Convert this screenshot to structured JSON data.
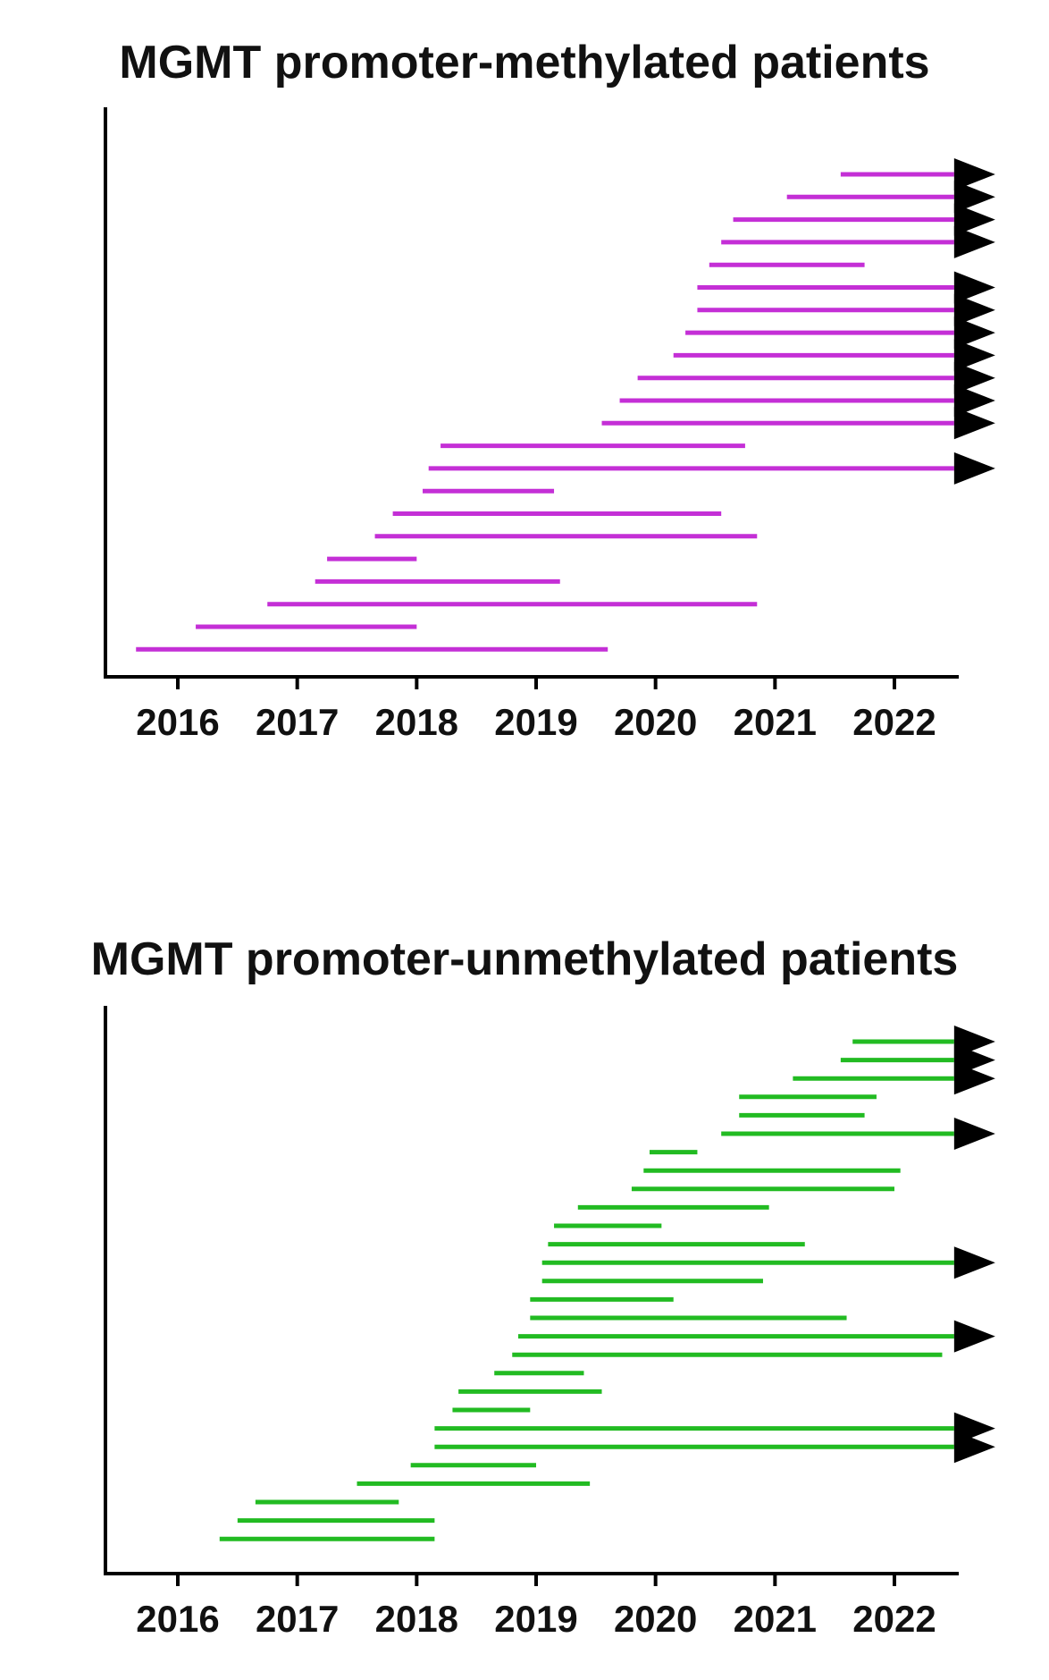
{
  "chart_data": [
    {
      "type": "swimmer",
      "title": "MGMT promoter-methylated patients",
      "xlabel": "",
      "ylabel": "",
      "xlim": [
        2015.4,
        2022.55
      ],
      "ticks": [
        "2016",
        "2017",
        "2018",
        "2019",
        "2020",
        "2021",
        "2022"
      ],
      "tick_values": [
        2016,
        2017,
        2018,
        2019,
        2020,
        2021,
        2022
      ],
      "color": "#c42fd6",
      "arrow_color": "#000000",
      "grid": false,
      "bars": [
        {
          "start": 2021.55,
          "end": 2022.5,
          "ongoing": true
        },
        {
          "start": 2021.1,
          "end": 2022.5,
          "ongoing": true
        },
        {
          "start": 2020.65,
          "end": 2022.5,
          "ongoing": true
        },
        {
          "start": 2020.55,
          "end": 2022.5,
          "ongoing": true
        },
        {
          "start": 2020.45,
          "end": 2021.75,
          "ongoing": false
        },
        {
          "start": 2020.35,
          "end": 2022.5,
          "ongoing": true
        },
        {
          "start": 2020.35,
          "end": 2022.5,
          "ongoing": true
        },
        {
          "start": 2020.25,
          "end": 2022.5,
          "ongoing": true
        },
        {
          "start": 2020.15,
          "end": 2022.5,
          "ongoing": true
        },
        {
          "start": 2019.85,
          "end": 2022.5,
          "ongoing": true
        },
        {
          "start": 2019.7,
          "end": 2022.5,
          "ongoing": true
        },
        {
          "start": 2019.55,
          "end": 2022.5,
          "ongoing": true
        },
        {
          "start": 2018.2,
          "end": 2020.75,
          "ongoing": false
        },
        {
          "start": 2018.1,
          "end": 2022.5,
          "ongoing": true
        },
        {
          "start": 2018.05,
          "end": 2019.15,
          "ongoing": false
        },
        {
          "start": 2017.8,
          "end": 2020.55,
          "ongoing": false
        },
        {
          "start": 2017.65,
          "end": 2020.85,
          "ongoing": false
        },
        {
          "start": 2017.25,
          "end": 2018.0,
          "ongoing": false
        },
        {
          "start": 2017.15,
          "end": 2019.2,
          "ongoing": false
        },
        {
          "start": 2016.75,
          "end": 2020.85,
          "ongoing": false
        },
        {
          "start": 2016.15,
          "end": 2018.0,
          "ongoing": false
        },
        {
          "start": 2015.65,
          "end": 2019.6,
          "ongoing": false
        }
      ]
    },
    {
      "type": "swimmer",
      "title": "MGMT promoter-unmethylated patients",
      "xlabel": "",
      "ylabel": "",
      "xlim": [
        2015.4,
        2022.55
      ],
      "ticks": [
        "2016",
        "2017",
        "2018",
        "2019",
        "2020",
        "2021",
        "2022"
      ],
      "tick_values": [
        2016,
        2017,
        2018,
        2019,
        2020,
        2021,
        2022
      ],
      "color": "#22bb22",
      "arrow_color": "#000000",
      "grid": false,
      "bars": [
        {
          "start": 2021.65,
          "end": 2022.5,
          "ongoing": true
        },
        {
          "start": 2021.55,
          "end": 2022.5,
          "ongoing": true
        },
        {
          "start": 2021.15,
          "end": 2022.5,
          "ongoing": true
        },
        {
          "start": 2020.7,
          "end": 2021.85,
          "ongoing": false
        },
        {
          "start": 2020.7,
          "end": 2021.75,
          "ongoing": false
        },
        {
          "start": 2020.55,
          "end": 2022.5,
          "ongoing": true
        },
        {
          "start": 2019.95,
          "end": 2020.35,
          "ongoing": false
        },
        {
          "start": 2019.9,
          "end": 2022.05,
          "ongoing": false
        },
        {
          "start": 2019.8,
          "end": 2022.0,
          "ongoing": false
        },
        {
          "start": 2019.35,
          "end": 2020.95,
          "ongoing": false
        },
        {
          "start": 2019.15,
          "end": 2020.05,
          "ongoing": false
        },
        {
          "start": 2019.1,
          "end": 2021.25,
          "ongoing": false
        },
        {
          "start": 2019.05,
          "end": 2022.5,
          "ongoing": true
        },
        {
          "start": 2019.05,
          "end": 2020.9,
          "ongoing": false
        },
        {
          "start": 2018.95,
          "end": 2020.15,
          "ongoing": false
        },
        {
          "start": 2018.95,
          "end": 2021.6,
          "ongoing": false
        },
        {
          "start": 2018.85,
          "end": 2022.5,
          "ongoing": true
        },
        {
          "start": 2018.8,
          "end": 2022.4,
          "ongoing": false
        },
        {
          "start": 2018.65,
          "end": 2019.4,
          "ongoing": false
        },
        {
          "start": 2018.35,
          "end": 2019.55,
          "ongoing": false
        },
        {
          "start": 2018.3,
          "end": 2018.95,
          "ongoing": false
        },
        {
          "start": 2018.15,
          "end": 2022.5,
          "ongoing": true
        },
        {
          "start": 2018.15,
          "end": 2022.5,
          "ongoing": true
        },
        {
          "start": 2017.95,
          "end": 2019.0,
          "ongoing": false
        },
        {
          "start": 2017.5,
          "end": 2019.45,
          "ongoing": false
        },
        {
          "start": 2016.65,
          "end": 2017.85,
          "ongoing": false
        },
        {
          "start": 2016.5,
          "end": 2018.15,
          "ongoing": false
        },
        {
          "start": 2016.35,
          "end": 2018.15,
          "ongoing": false
        }
      ]
    }
  ]
}
